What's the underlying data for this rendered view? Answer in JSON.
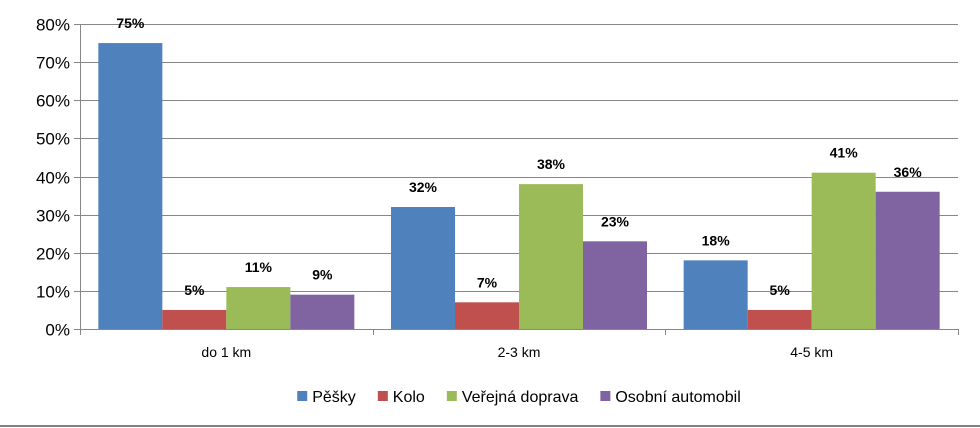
{
  "chart_data": {
    "type": "bar",
    "categories": [
      "do 1 km",
      "2-3 km",
      "4-5 km"
    ],
    "series": [
      {
        "name": "Pěšky",
        "values": [
          75,
          32,
          18
        ],
        "color": "#4F81BD"
      },
      {
        "name": "Kolo",
        "values": [
          5,
          7,
          5
        ],
        "color": "#C0504D"
      },
      {
        "name": "Veřejná doprava",
        "values": [
          11,
          38,
          41
        ],
        "color": "#9BBB59"
      },
      {
        "name": "Osobní automobil",
        "values": [
          9,
          23,
          36
        ],
        "color": "#8064A2"
      }
    ],
    "value_suffix": "%",
    "ylim": [
      0,
      80
    ],
    "yticks": [
      0,
      10,
      20,
      30,
      40,
      50,
      60,
      70,
      80
    ],
    "ytick_labels": [
      "0%",
      "10%",
      "20%",
      "30%",
      "40%",
      "50%",
      "60%",
      "70%",
      "80%"
    ],
    "grid": true,
    "legend_position": "bottom",
    "data_labels": true
  }
}
